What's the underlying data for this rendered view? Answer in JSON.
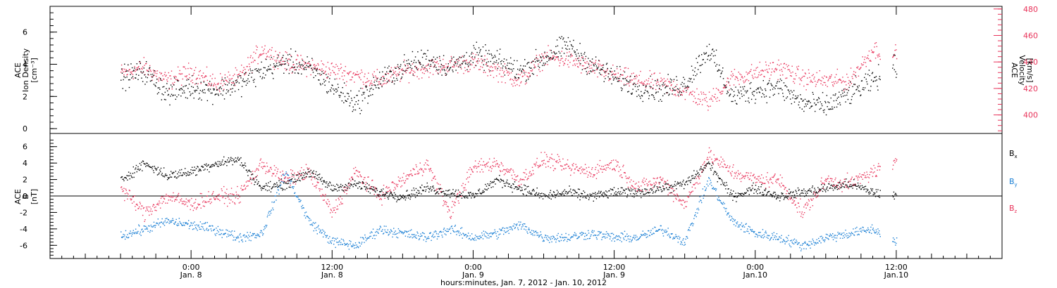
{
  "chart_data": [
    {
      "type": "scatter",
      "ylabel_left_line1": "ACE",
      "ylabel_left_line2": "Ion Density",
      "ylabel_left_units": "[cm⁻³]",
      "ylabel_right_line1": "ACE",
      "ylabel_right_line2": "Velocity",
      "ylabel_right_units": "[km/s]",
      "ylim_left": [
        -0.3,
        7.6
      ],
      "ylim_right": [
        386,
        482
      ],
      "yticks_left": [
        "0",
        "2",
        "4",
        "6"
      ],
      "yticks_right": [
        "400",
        "420",
        "440",
        "460",
        "480"
      ],
      "grid": false,
      "series": [
        {
          "name": "Ion Density",
          "axis": "left",
          "color": "#000000",
          "x": [
            0,
            2,
            4,
            6,
            8,
            10,
            12,
            14,
            16,
            18,
            20,
            22,
            24,
            26,
            28,
            30,
            32,
            34,
            36,
            38,
            40,
            42,
            44,
            46,
            48,
            50,
            52,
            54,
            56,
            58,
            60,
            62,
            64,
            66
          ],
          "values": [
            3.2,
            3.6,
            2.2,
            2.6,
            2.4,
            2.8,
            3.6,
            4.2,
            3.8,
            2.6,
            1.6,
            3.0,
            3.8,
            4.4,
            3.8,
            4.6,
            4.2,
            3.6,
            4.4,
            5.2,
            4.0,
            3.2,
            2.6,
            2.4,
            2.8,
            5.0,
            2.0,
            2.4,
            2.6,
            1.6,
            1.4,
            2.2,
            3.0,
            4.0
          ]
        },
        {
          "name": "Velocity",
          "axis": "right",
          "color": "#e8335a",
          "x": [
            0,
            2,
            4,
            6,
            8,
            10,
            12,
            14,
            16,
            18,
            20,
            22,
            24,
            26,
            28,
            30,
            32,
            34,
            36,
            38,
            40,
            42,
            44,
            46,
            48,
            50,
            52,
            54,
            56,
            58,
            60,
            62,
            64,
            66
          ],
          "values": [
            432,
            436,
            426,
            433,
            424,
            428,
            450,
            440,
            437,
            434,
            430,
            426,
            433,
            436,
            438,
            440,
            434,
            426,
            444,
            442,
            436,
            430,
            426,
            424,
            418,
            410,
            428,
            432,
            436,
            428,
            426,
            426,
            450,
            446
          ]
        }
      ]
    },
    {
      "type": "scatter",
      "ylabel_left_line1": "ACE",
      "ylabel_left_line2": "B",
      "ylabel_left_units": "[nT]",
      "ylim": [
        -7.6,
        7.6
      ],
      "yticks": [
        "-6",
        "-4",
        "-2",
        "0",
        "2",
        "4",
        "6"
      ],
      "zero_line": true,
      "xlabel": "hours:minutes, Jan.  7, 2012 - Jan. 10, 2012",
      "xlim": [
        -6,
        75
      ],
      "xtick_values": [
        6,
        18,
        30,
        42,
        54,
        66
      ],
      "xtick_labels_top": [
        "0:00",
        "12:00",
        "0:00",
        "12:00",
        "0:00",
        "12:00"
      ],
      "xtick_labels_bottom": [
        "Jan. 8",
        "Jan. 8",
        "Jan. 9",
        "Jan. 9",
        "Jan.10",
        "Jan.10"
      ],
      "legend_placement": "right",
      "series": [
        {
          "name": "Bx",
          "name_main": "B",
          "name_sub": "x",
          "color": "#000000",
          "x": [
            0,
            2,
            4,
            6,
            8,
            10,
            12,
            14,
            16,
            18,
            20,
            22,
            24,
            26,
            28,
            30,
            32,
            34,
            36,
            38,
            40,
            42,
            44,
            46,
            48,
            50,
            52,
            54,
            56,
            58,
            60,
            62,
            64,
            66
          ],
          "values": [
            2.0,
            4.0,
            2.5,
            3.0,
            4.0,
            4.5,
            1.0,
            1.5,
            3.0,
            1.0,
            1.5,
            0.5,
            0.0,
            1.0,
            0.5,
            0.0,
            2.0,
            1.0,
            0.0,
            0.5,
            0.0,
            0.5,
            0.5,
            1.0,
            1.5,
            4.0,
            0.0,
            1.0,
            0.0,
            0.5,
            1.0,
            1.5,
            0.5,
            0.0
          ]
        },
        {
          "name": "By",
          "name_main": "B",
          "name_sub": "y",
          "color": "#1a7fd4",
          "x": [
            0,
            2,
            4,
            6,
            8,
            10,
            12,
            14,
            16,
            18,
            20,
            22,
            24,
            26,
            28,
            30,
            32,
            34,
            36,
            38,
            40,
            42,
            44,
            46,
            48,
            50,
            52,
            54,
            56,
            58,
            60,
            62,
            64,
            66
          ],
          "values": [
            -4.8,
            -4.0,
            -3.0,
            -3.5,
            -4.0,
            -5.0,
            -4.5,
            3.0,
            -3.0,
            -5.5,
            -6.0,
            -4.0,
            -4.5,
            -5.0,
            -4.0,
            -5.0,
            -4.5,
            -3.5,
            -5.0,
            -5.0,
            -4.5,
            -5.0,
            -5.0,
            -4.0,
            -5.5,
            2.0,
            -3.0,
            -4.5,
            -5.0,
            -6.0,
            -5.0,
            -4.5,
            -4.0,
            -5.5
          ]
        },
        {
          "name": "Bz",
          "name_main": "B",
          "name_sub": "z",
          "color": "#e8335a",
          "x": [
            0,
            2,
            4,
            6,
            8,
            10,
            12,
            14,
            16,
            18,
            20,
            22,
            24,
            26,
            28,
            30,
            32,
            34,
            36,
            38,
            40,
            42,
            44,
            46,
            48,
            50,
            52,
            54,
            56,
            58,
            60,
            62,
            64,
            66
          ],
          "values": [
            1.0,
            -2.0,
            0.0,
            -1.0,
            0.0,
            0.0,
            4.0,
            2.0,
            3.0,
            -2.0,
            3.0,
            0.0,
            2.0,
            4.0,
            -2.0,
            3.5,
            4.0,
            2.0,
            4.5,
            3.5,
            3.0,
            4.0,
            1.0,
            2.0,
            -1.0,
            5.0,
            3.0,
            2.0,
            2.0,
            -2.0,
            2.0,
            1.5,
            3.0,
            4.0
          ]
        }
      ]
    }
  ]
}
